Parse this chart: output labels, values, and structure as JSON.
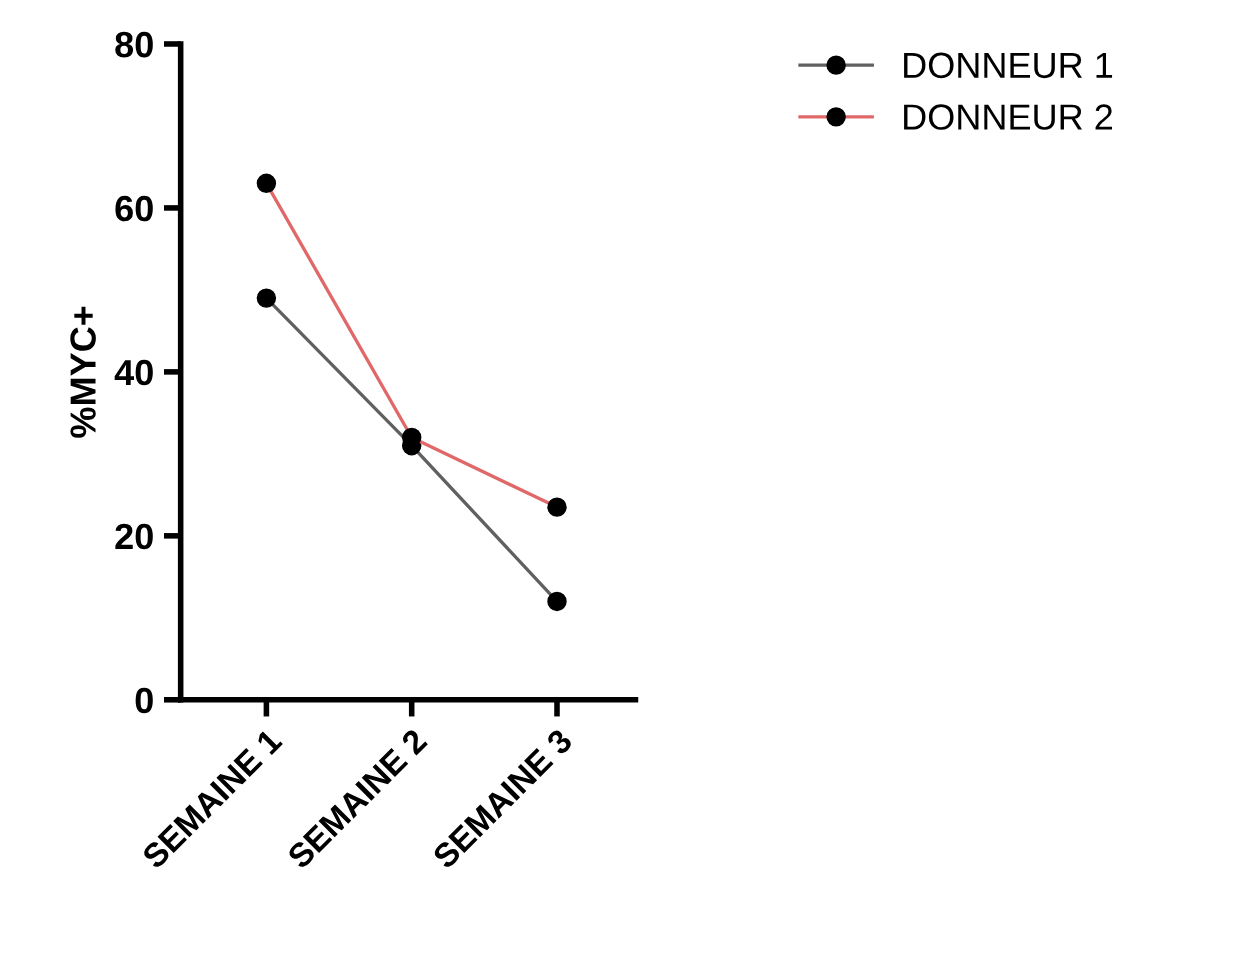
{
  "chart_data": {
    "type": "line",
    "ylabel": "%MYC+",
    "categories": [
      "SEMAINE 1",
      "SEMAINE 2",
      "SEMAINE 3"
    ],
    "series": [
      {
        "name": "DONNEUR 1",
        "color": "#606060",
        "values": [
          49,
          31,
          12
        ]
      },
      {
        "name": "DONNEUR 2",
        "color": "#e06868",
        "values": [
          63,
          32,
          23.5
        ]
      }
    ],
    "ylim": [
      0,
      80
    ],
    "yticks": [
      0,
      20,
      40,
      60,
      80
    ],
    "grid": false,
    "legend": "top right",
    "marker": "circle",
    "line_style": "solid"
  }
}
